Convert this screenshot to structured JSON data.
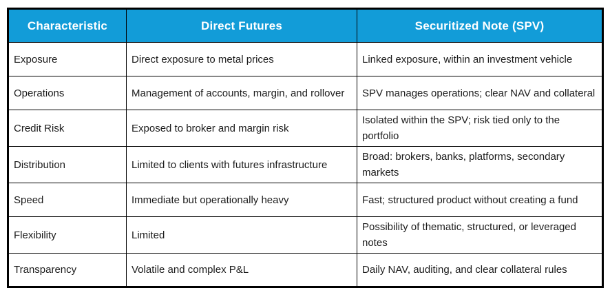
{
  "colors": {
    "header_bg": "#129CD8",
    "header_text": "#FFFFFF",
    "body_text": "#1B1B1B",
    "border": "#000000",
    "row_bg": "#FFFFFF"
  },
  "table": {
    "columns": [
      "Characteristic",
      "Direct Futures",
      "Securitized Note (SPV)"
    ],
    "rows": [
      [
        "Exposure",
        "Direct exposure to metal prices",
        "Linked exposure, within an investment vehicle"
      ],
      [
        "Operations",
        "Management of accounts, margin, and rollover",
        "SPV manages operations; clear NAV and collateral"
      ],
      [
        "Credit Risk",
        "Exposed to broker and margin risk",
        "Isolated within the SPV; risk tied only to the portfolio"
      ],
      [
        "Distribution",
        "Limited to clients with futures infrastructure",
        "Broad: brokers, banks, platforms, secondary markets"
      ],
      [
        "Speed",
        "Immediate but operationally heavy",
        "Fast; structured product without creating a fund"
      ],
      [
        "Flexibility",
        "Limited",
        "Possibility of thematic, structured, or leveraged notes"
      ],
      [
        "Transparency",
        "Volatile and complex P&L",
        "Daily NAV, auditing, and clear collateral rules"
      ]
    ]
  }
}
